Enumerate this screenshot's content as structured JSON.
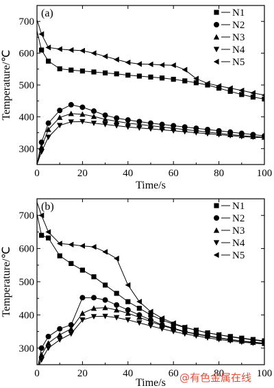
{
  "watermark": "@有色金属在线",
  "chart_data": [
    {
      "type": "line",
      "panel_label": "(a)",
      "xlabel": "Time/s",
      "ylabel": "Temperature/℃",
      "xlim": [
        0,
        100
      ],
      "ylim": [
        250,
        750
      ],
      "xticks": [
        0,
        20,
        40,
        60,
        80,
        100
      ],
      "yticks": [
        300,
        400,
        500,
        600,
        700
      ],
      "legend_position": "top-right",
      "series": [
        {
          "name": "N1",
          "marker": "square",
          "x": [
            0,
            2,
            5,
            10,
            15,
            20,
            25,
            30,
            35,
            40,
            45,
            50,
            55,
            60,
            65,
            70,
            75,
            80,
            85,
            90,
            95,
            100
          ],
          "y": [
            670,
            610,
            575,
            551,
            547,
            544,
            541,
            538,
            535,
            531,
            528,
            525,
            522,
            518,
            513,
            507,
            500,
            490,
            480,
            470,
            462,
            456
          ]
        },
        {
          "name": "N2",
          "marker": "circle",
          "x": [
            0,
            2,
            5,
            10,
            15,
            20,
            25,
            30,
            35,
            40,
            45,
            50,
            55,
            60,
            65,
            70,
            75,
            80,
            85,
            90,
            95,
            100
          ],
          "y": [
            250,
            320,
            380,
            420,
            438,
            430,
            418,
            405,
            396,
            390,
            385,
            380,
            376,
            372,
            368,
            364,
            360,
            356,
            352,
            348,
            344,
            340
          ]
        },
        {
          "name": "N3",
          "marker": "triangle-up",
          "x": [
            0,
            2,
            5,
            10,
            15,
            20,
            25,
            30,
            35,
            40,
            45,
            50,
            55,
            60,
            65,
            70,
            75,
            80,
            85,
            90,
            95,
            100
          ],
          "y": [
            250,
            305,
            360,
            398,
            410,
            408,
            401,
            392,
            386,
            380,
            376,
            372,
            368,
            364,
            360,
            356,
            352,
            348,
            344,
            341,
            338,
            336
          ]
        },
        {
          "name": "N4",
          "marker": "triangle-down",
          "x": [
            0,
            2,
            5,
            10,
            15,
            20,
            25,
            30,
            35,
            40,
            45,
            50,
            55,
            60,
            65,
            70,
            75,
            80,
            85,
            90,
            95,
            100
          ],
          "y": [
            250,
            290,
            336,
            373,
            384,
            385,
            380,
            376,
            372,
            368,
            365,
            362,
            359,
            356,
            353,
            350,
            347,
            344,
            341,
            338,
            336,
            334
          ]
        },
        {
          "name": "N5",
          "marker": "triangle-left",
          "x": [
            0,
            2,
            5,
            10,
            15,
            20,
            25,
            30,
            35,
            40,
            45,
            50,
            55,
            60,
            65,
            70,
            75,
            80,
            85,
            90,
            95,
            100
          ],
          "y": [
            705,
            660,
            618,
            613,
            610,
            608,
            600,
            590,
            580,
            571,
            566,
            565,
            563,
            562,
            548,
            520,
            505,
            497,
            490,
            483,
            475,
            468
          ]
        }
      ]
    },
    {
      "type": "line",
      "panel_label": "(b)",
      "xlabel": "Time/s",
      "ylabel": "Temperature/℃",
      "xlim": [
        0,
        100
      ],
      "ylim": [
        250,
        750
      ],
      "xticks": [
        0,
        20,
        40,
        60,
        80,
        100
      ],
      "yticks": [
        300,
        400,
        500,
        600,
        700
      ],
      "legend_position": "top-right",
      "series": [
        {
          "name": "N1",
          "marker": "square",
          "x": [
            0,
            2,
            5,
            10,
            15,
            20,
            25,
            30,
            35,
            40,
            45,
            50,
            55,
            60,
            65,
            70,
            75,
            80,
            85,
            90,
            95,
            100
          ],
          "y": [
            705,
            640,
            632,
            578,
            555,
            535,
            515,
            490,
            465,
            440,
            420,
            400,
            385,
            372,
            362,
            354,
            346,
            340,
            335,
            330,
            326,
            322
          ]
        },
        {
          "name": "N2",
          "marker": "circle",
          "x": [
            0,
            2,
            5,
            10,
            15,
            20,
            25,
            30,
            35,
            40,
            45,
            50,
            55,
            60,
            65,
            70,
            75,
            80,
            85,
            90,
            95,
            100
          ],
          "y": [
            230,
            300,
            335,
            358,
            370,
            452,
            452,
            445,
            430,
            415,
            400,
            385,
            370,
            360,
            350,
            343,
            337,
            331,
            326,
            322,
            318,
            315
          ]
        },
        {
          "name": "N3",
          "marker": "triangle-up",
          "x": [
            0,
            2,
            5,
            10,
            15,
            20,
            25,
            30,
            35,
            40,
            45,
            50,
            55,
            60,
            65,
            70,
            75,
            80,
            85,
            90,
            95,
            100
          ],
          "y": [
            230,
            280,
            315,
            340,
            358,
            405,
            420,
            422,
            415,
            405,
            393,
            380,
            368,
            358,
            349,
            342,
            336,
            330,
            325,
            321,
            317,
            314
          ]
        },
        {
          "name": "N4",
          "marker": "triangle-down",
          "x": [
            0,
            2,
            5,
            10,
            15,
            20,
            25,
            30,
            35,
            40,
            45,
            50,
            55,
            60,
            65,
            70,
            75,
            80,
            85,
            90,
            95,
            100
          ],
          "y": [
            230,
            265,
            300,
            325,
            343,
            385,
            395,
            396,
            392,
            385,
            376,
            367,
            358,
            350,
            343,
            337,
            331,
            326,
            322,
            318,
            315,
            312
          ]
        },
        {
          "name": "N5",
          "marker": "triangle-left",
          "x": [
            0,
            2,
            5,
            10,
            15,
            20,
            25,
            30,
            35,
            40,
            45,
            50,
            55,
            60,
            65,
            70,
            75,
            80,
            85,
            90,
            95,
            100
          ],
          "y": [
            740,
            700,
            650,
            615,
            612,
            608,
            605,
            590,
            570,
            490,
            440,
            410,
            390,
            375,
            363,
            354,
            346,
            340,
            334,
            329,
            325,
            320
          ]
        }
      ]
    }
  ]
}
